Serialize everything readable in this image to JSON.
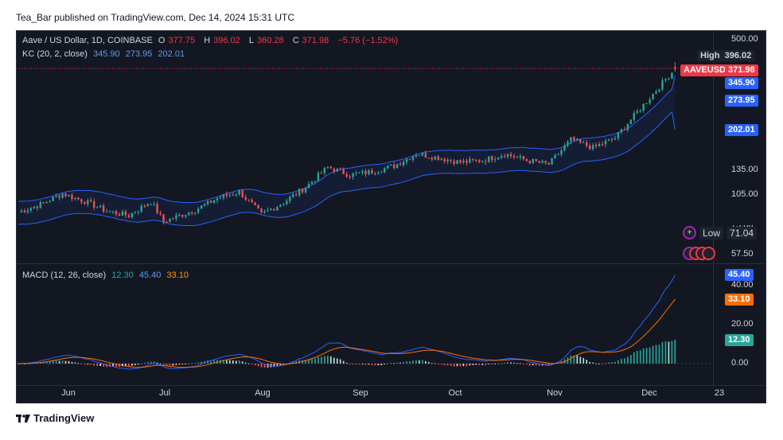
{
  "publisher_line": "Tea_Bar published on TradingView.com, Dec 14, 2024 15:31 UTC",
  "brand": "TradingView",
  "legend": {
    "symbol": "Aave / US Dollar, 1D, COINBASE",
    "o_label": "O",
    "o": "377.75",
    "h_label": "H",
    "h": "396.02",
    "l_label": "L",
    "l": "360.28",
    "c_label": "C",
    "c": "371.98",
    "change": "−5.76 (−1.52%)",
    "kc_label": "KC (20, 2, close)",
    "kc_upper": "345.90",
    "kc_basis": "273.95",
    "kc_lower": "202.01",
    "macd_label": "MACD (12, 26, close)",
    "macd_hist": "12.30",
    "macd_line": "45.40",
    "macd_signal": "33.10"
  },
  "price_axis": [
    "500.00",
    "135.00",
    "105.00",
    "75.00",
    "57.50"
  ],
  "macd_axis": [
    "40.00",
    "20.00",
    "0.00"
  ],
  "tags": {
    "high_label": "High",
    "high_value": "396.02",
    "symbol_tag": "AAVEUSD",
    "close_value": "371.98",
    "kc_upper": "345.90",
    "kc_basis": "273.95",
    "kc_lower": "202.01",
    "low_label": "Low",
    "low_value": "71.04",
    "macd_line": "45.40",
    "macd_signal": "33.10",
    "macd_hist": "12.30"
  },
  "x_labels": [
    "Jun",
    "Jul",
    "Aug",
    "Sep",
    "Oct",
    "Nov",
    "Dec",
    "23"
  ],
  "colors": {
    "up": "#26a69a",
    "down": "#ef5350",
    "kc": "#2962ff",
    "macd": "#2962ff",
    "signal": "#ff6d00",
    "bg": "#131722"
  },
  "chart_data": [
    {
      "type": "candlestick",
      "title": "Aave / US Dollar, 1D, COINBASE",
      "y_scale": "log",
      "ylim": [
        55,
        520
      ],
      "x_range": [
        "2024-05-20",
        "2024-12-25"
      ],
      "close_path": [
        [
          "2024-05-20",
          88
        ],
        [
          "2024-05-27",
          95
        ],
        [
          "2024-06-03",
          106
        ],
        [
          "2024-06-10",
          98
        ],
        [
          "2024-06-17",
          89
        ],
        [
          "2024-06-24",
          85
        ],
        [
          "2024-07-01",
          98
        ],
        [
          "2024-07-05",
          80
        ],
        [
          "2024-07-15",
          90
        ],
        [
          "2024-07-22",
          101
        ],
        [
          "2024-07-29",
          108
        ],
        [
          "2024-08-05",
          86
        ],
        [
          "2024-08-12",
          97
        ],
        [
          "2024-08-19",
          113
        ],
        [
          "2024-08-26",
          138
        ],
        [
          "2024-09-02",
          128
        ],
        [
          "2024-09-09",
          132
        ],
        [
          "2024-09-16",
          140
        ],
        [
          "2024-09-23",
          158
        ],
        [
          "2024-09-30",
          152
        ],
        [
          "2024-10-07",
          145
        ],
        [
          "2024-10-14",
          148
        ],
        [
          "2024-10-21",
          158
        ],
        [
          "2024-10-28",
          148
        ],
        [
          "2024-11-04",
          142
        ],
        [
          "2024-11-11",
          182
        ],
        [
          "2024-11-18",
          168
        ],
        [
          "2024-11-25",
          185
        ],
        [
          "2024-12-02",
          240
        ],
        [
          "2024-12-09",
          310
        ],
        [
          "2024-12-14",
          371.98
        ]
      ],
      "last": {
        "open": 377.75,
        "high": 396.02,
        "low": 360.28,
        "close": 371.98
      },
      "period_low": 71.04,
      "keltner_channel_last": {
        "upper": 345.9,
        "basis": 273.95,
        "lower": 202.01
      }
    },
    {
      "type": "line",
      "title": "MACD (12, 26, close)",
      "ylim": [
        -10,
        50
      ],
      "series": [
        {
          "name": "MACD",
          "last": 45.4
        },
        {
          "name": "Signal",
          "last": 33.1
        },
        {
          "name": "Histogram",
          "last": 12.3
        }
      ]
    }
  ]
}
